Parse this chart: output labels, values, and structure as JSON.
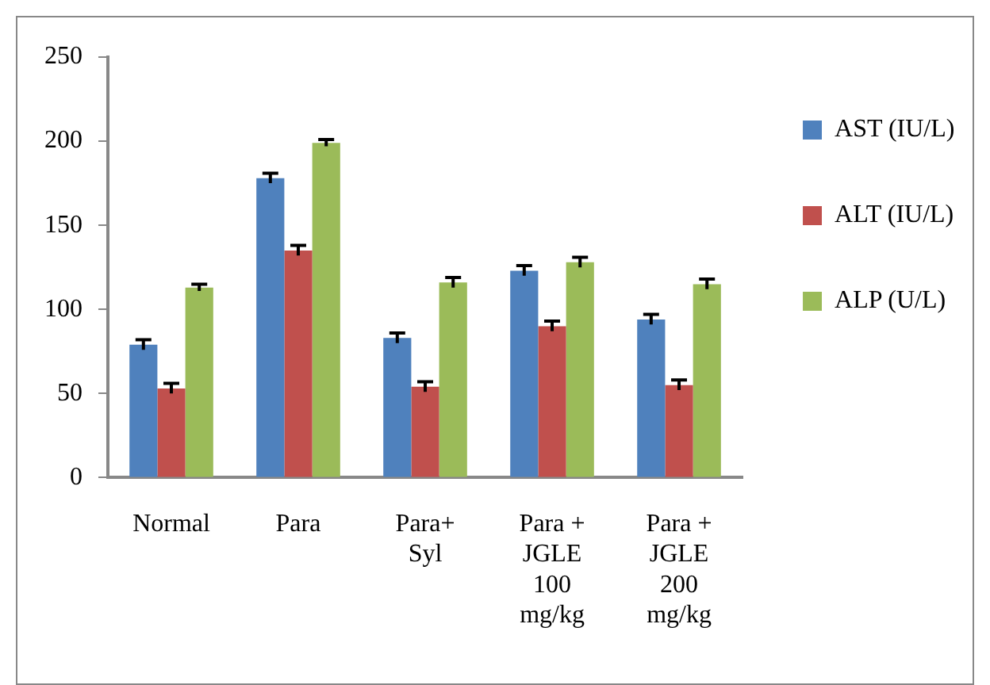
{
  "chart_data": {
    "type": "bar",
    "categories": [
      "Normal",
      "Para",
      "Para+ Syl",
      "Para + JGLE 100 mg/kg",
      "Para + JGLE 200 mg/kg"
    ],
    "series": [
      {
        "name": "AST (IU/L)",
        "color": "#4f81bd",
        "values": [
          79,
          178,
          83,
          123,
          94
        ],
        "errors": [
          3,
          3,
          3,
          3,
          3
        ]
      },
      {
        "name": "ALT (IU/L)",
        "color": "#c0504d",
        "values": [
          53,
          135,
          54,
          90,
          55
        ],
        "errors": [
          3,
          3,
          3,
          3,
          3
        ]
      },
      {
        "name": "ALP (U/L)",
        "color": "#9bbb59",
        "values": [
          113,
          199,
          116,
          128,
          115
        ],
        "errors": [
          2,
          2,
          3,
          3,
          3
        ]
      }
    ],
    "ylim": [
      0,
      250
    ],
    "yticks": [
      0,
      50,
      100,
      150,
      200,
      250
    ],
    "grid": false,
    "legend": "right"
  }
}
